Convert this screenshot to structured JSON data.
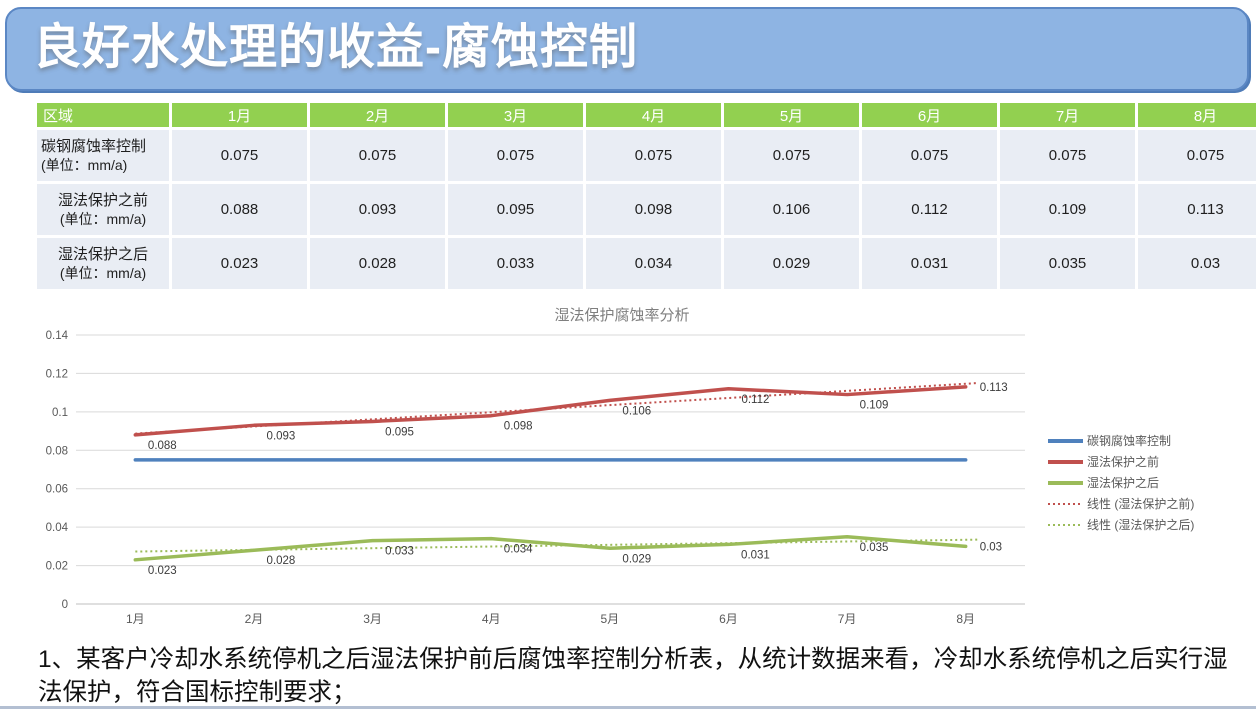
{
  "title": {
    "text": "良好水处理的收益-腐蚀控制"
  },
  "table": {
    "header": [
      "区域",
      "1月",
      "2月",
      "3月",
      "4月",
      "5月",
      "6月",
      "7月",
      "8月"
    ],
    "rows": [
      {
        "label": "碳钢腐蚀率控制",
        "unit": "(单位：mm/a)",
        "values": [
          "0.075",
          "0.075",
          "0.075",
          "0.075",
          "0.075",
          "0.075",
          "0.075",
          "0.075"
        ]
      },
      {
        "label": "湿法保护之前",
        "unit": "(单位：mm/a)",
        "values": [
          "0.088",
          "0.093",
          "0.095",
          "0.098",
          "0.106",
          "0.112",
          "0.109",
          "0.113"
        ]
      },
      {
        "label": "湿法保护之后",
        "unit": "(单位：mm/a)",
        "values": [
          "0.023",
          "0.028",
          "0.033",
          "0.034",
          "0.029",
          "0.031",
          "0.035",
          "0.03"
        ]
      }
    ]
  },
  "chart_data": {
    "type": "line",
    "title": "湿法保护腐蚀率分析",
    "categories": [
      "1月",
      "2月",
      "3月",
      "4月",
      "5月",
      "6月",
      "7月",
      "8月"
    ],
    "series": [
      {
        "name": "碳钢腐蚀率控制",
        "color": "#4F81BD",
        "data_labels": false,
        "values": [
          0.075,
          0.075,
          0.075,
          0.075,
          0.075,
          0.075,
          0.075,
          0.075
        ]
      },
      {
        "name": "湿法保护之前",
        "color": "#C0504D",
        "data_labels": true,
        "values": [
          0.088,
          0.093,
          0.095,
          0.098,
          0.106,
          0.112,
          0.109,
          0.113
        ]
      },
      {
        "name": "湿法保护之后",
        "color": "#9BBB59",
        "data_labels": true,
        "values": [
          0.023,
          0.028,
          0.033,
          0.034,
          0.029,
          0.031,
          0.035,
          0.03
        ]
      }
    ],
    "trendlines": [
      {
        "name": "线性 (湿法保护之前)",
        "color": "#C0504D",
        "start": 0.0887,
        "end": 0.115
      },
      {
        "name": "线性 (湿法保护之后)",
        "color": "#9BBB59",
        "start": 0.0273,
        "end": 0.0335
      }
    ],
    "ylim": [
      0,
      0.14
    ],
    "ytick_step": 0.02,
    "grid": true,
    "legend_position": "right"
  },
  "footer": {
    "text": "1、某客户冷却水系统停机之后湿法保护前后腐蚀率控制分析表，从统计数据来看，冷却水系统停机之后实行湿法保护，符合国标控制要求；"
  },
  "colors": {
    "banner_fill": "#8EB4E3",
    "banner_border": "#5b87c4",
    "table_header_fill": "#92D050",
    "table_cell_fill": "#E9EDF4",
    "series_blue": "#4F81BD",
    "series_red": "#C0504D",
    "series_green": "#9BBB59",
    "gridline": "#D9D9D9",
    "axis_line": "#BFBFBF",
    "chart_text": "#595959",
    "chart_title_text": "#7f7f7f",
    "data_label_text": "#3b3b3b"
  }
}
